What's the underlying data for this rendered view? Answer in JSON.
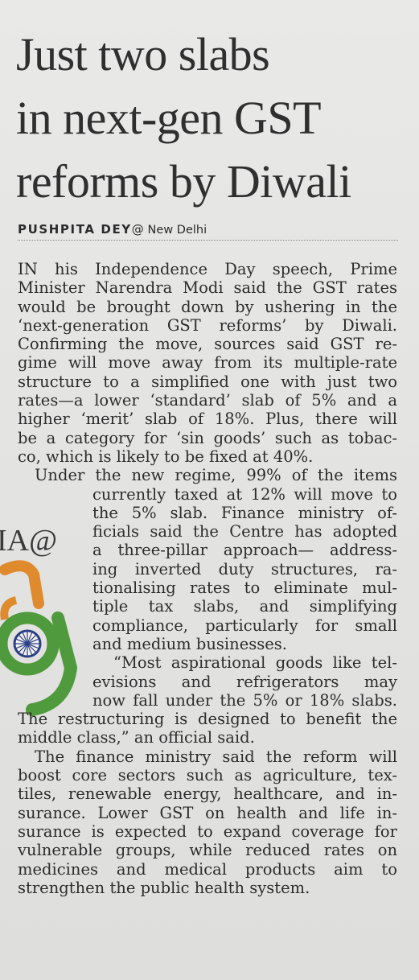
{
  "headline": [
    "Just two slabs",
    "in next-gen GST",
    "reforms by Diwali"
  ],
  "byline": {
    "author": "PUSHPITA DEY",
    "at": "@",
    "place": "New Delhi"
  },
  "logo": {
    "text": "IA@",
    "colors": [
      "#e08a2e",
      "#4f9a3c",
      "#2d3f86"
    ]
  },
  "article": {
    "lines": [
      "IN his Independence Day speech, Prime",
      "Minister Narendra Modi said the GST rates",
      "would be brought down by ushering in the",
      "‘next-generation GST reforms’ by Diwali.",
      "Confirming the move, sources said GST re-",
      "gime will move away from its multiple-rate",
      "structure to a simplified one with just two",
      "rates—a lower ‘standard’ slab of 5% and a",
      "higher ‘merit’ slab of 18%. Plus, there will",
      "be a category for ‘sin goods’ such as tobac-",
      "co, which is likely to be fixed at 40%.",
      "Under the new regime, 99% of the items",
      "currently taxed at 12% will move to",
      "the 5% slab. Finance ministry of-",
      "ficials said the Centre has adopted",
      "a three-pillar approach— address-",
      "ing inverted duty structures, ra-",
      "tionalising rates to eliminate mul-",
      "tiple tax slabs, and simplifying",
      "compliance, particularly for small",
      "and medium businesses.",
      "“Most aspirational goods like tel-",
      "evisions and refrigerators may",
      "now fall under the 5% or 18% slabs.",
      "The restructuring is designed to benefit the",
      "middle class,” an official said.",
      "The finance ministry said the reform will",
      "boost core sectors such as agriculture, tex-",
      "tiles, renewable energy, healthcare, and in-",
      "surance. Lower GST on health and life in-",
      "surance is expected to expand coverage for",
      "vulnerable groups, while reduced rates on",
      "medicines and medical products aim to",
      "strengthen the public health system."
    ]
  }
}
